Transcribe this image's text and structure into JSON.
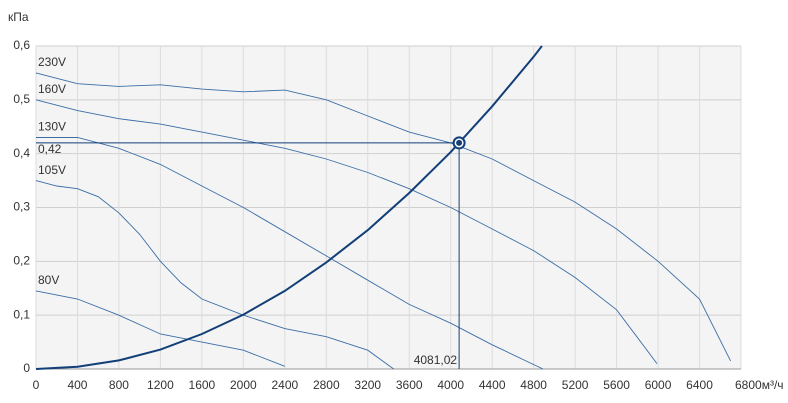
{
  "chart_data": {
    "type": "line",
    "y_label": "кПа",
    "xlim": [
      0,
      6800
    ],
    "ylim": [
      0,
      0.6
    ],
    "xticks": [
      0,
      400,
      800,
      1200,
      1600,
      2000,
      2400,
      2800,
      3200,
      3600,
      4000,
      4400,
      4800,
      5200,
      5600,
      6000,
      6400,
      {
        "value": 6800,
        "label": "6800м³/ч"
      }
    ],
    "yticks": [
      0,
      {
        "value": 0.1,
        "label": "0,1"
      },
      {
        "value": 0.2,
        "label": "0,2"
      },
      {
        "value": 0.3,
        "label": "0,3"
      },
      {
        "value": 0.4,
        "label": "0,4"
      },
      {
        "value": 0.5,
        "label": "0,5"
      },
      {
        "value": 0.6,
        "label": "0,6"
      }
    ],
    "grid": true,
    "series": [
      {
        "name": "230V",
        "color": "#3b6ea5",
        "x": [
          0,
          400,
          800,
          1200,
          1600,
          2000,
          2400,
          2800,
          3200,
          3600,
          4000,
          4400,
          4800,
          5200,
          5600,
          6000,
          6400,
          6700
        ],
        "values": [
          0.55,
          0.53,
          0.525,
          0.528,
          0.52,
          0.515,
          0.518,
          0.5,
          0.47,
          0.44,
          0.42,
          0.39,
          0.35,
          0.31,
          0.26,
          0.2,
          0.13,
          0.015
        ]
      },
      {
        "name": "160V",
        "color": "#3b6ea5",
        "x": [
          0,
          400,
          800,
          1200,
          1600,
          2000,
          2400,
          2800,
          3200,
          3600,
          4000,
          4400,
          4800,
          5200,
          5600,
          5990
        ],
        "values": [
          0.5,
          0.48,
          0.465,
          0.455,
          0.44,
          0.425,
          0.41,
          0.39,
          0.365,
          0.335,
          0.3,
          0.26,
          0.22,
          0.17,
          0.11,
          0.01
        ]
      },
      {
        "name": "130V",
        "color": "#3b6ea5",
        "x": [
          0,
          400,
          800,
          1200,
          1600,
          2000,
          2400,
          2800,
          3200,
          3600,
          4000,
          4400,
          4890
        ],
        "values": [
          0.43,
          0.43,
          0.41,
          0.38,
          0.34,
          0.3,
          0.255,
          0.21,
          0.165,
          0.12,
          0.085,
          0.045,
          0
        ]
      },
      {
        "name": "105V",
        "color": "#3b6ea5",
        "x": [
          0,
          200,
          400,
          600,
          800,
          1000,
          1200,
          1400,
          1600,
          2000,
          2400,
          2800,
          3200,
          3450
        ],
        "values": [
          0.35,
          0.34,
          0.335,
          0.32,
          0.29,
          0.25,
          0.2,
          0.16,
          0.13,
          0.1,
          0.075,
          0.06,
          0.035,
          0
        ]
      },
      {
        "name": "80V",
        "color": "#3b6ea5",
        "x": [
          0,
          400,
          800,
          1200,
          1600,
          2000,
          2400
        ],
        "values": [
          0.145,
          0.13,
          0.1,
          0.065,
          0.05,
          0.035,
          0.005
        ]
      },
      {
        "color": "#123f78",
        "x": [
          0,
          400,
          800,
          1200,
          1600,
          2000,
          2400,
          2800,
          3200,
          3600,
          4000,
          4400,
          4800,
          4880
        ],
        "values": [
          0,
          0.004,
          0.016,
          0.036,
          0.065,
          0.101,
          0.145,
          0.198,
          0.258,
          0.327,
          0.403,
          0.488,
          0.58,
          0.6
        ]
      }
    ],
    "operating_point": {
      "x": 4081.02,
      "y": 0.42,
      "x_label": "4081,02",
      "y_label": "0,42",
      "color": "#123f78"
    }
  }
}
